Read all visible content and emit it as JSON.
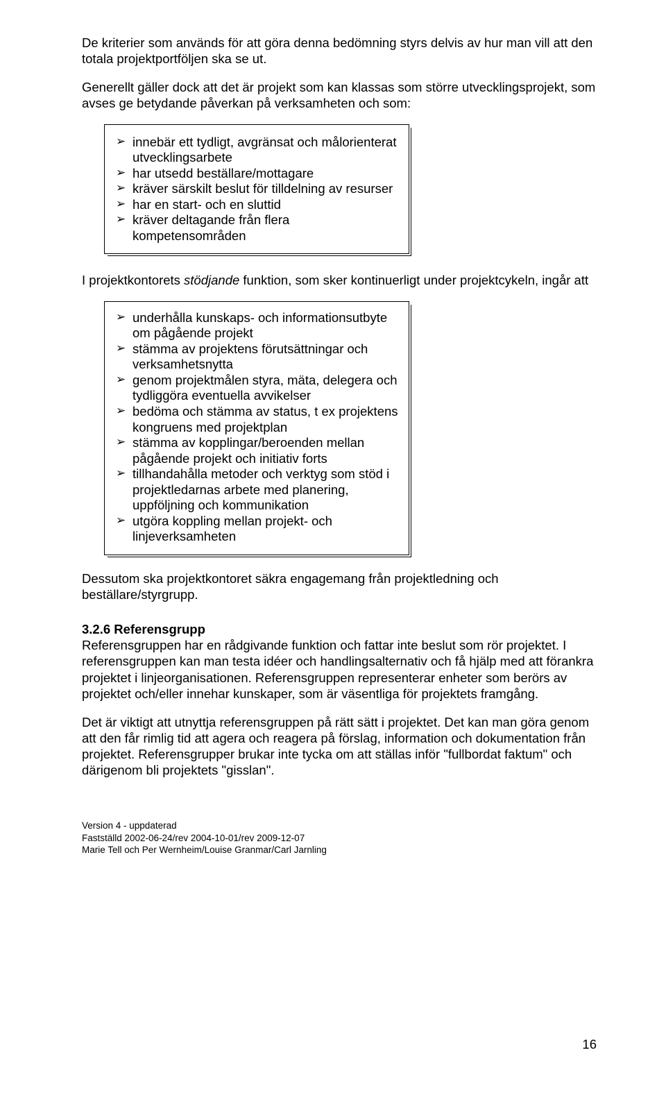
{
  "para1": "De kriterier som används för att göra denna bedömning styrs delvis av hur man vill att den totala projektportföljen ska se ut.",
  "para2": "Generellt gäller dock att det är projekt som kan klassas som större utvecklingsprojekt, som avses ge betydande påverkan på verksamheten och som:",
  "box1": {
    "items": [
      "innebär ett tydligt, avgränsat och målorienterat utvecklingsarbete",
      "har utsedd beställare/mottagare",
      "kräver särskilt beslut för tilldelning av resurser",
      "har en start- och en sluttid",
      "kräver deltagande från flera kompetensområden"
    ]
  },
  "para3_pre": "I projektkontorets ",
  "para3_italic": "stödjande",
  "para3_post": " funktion, som sker kontinuerligt under projektcykeln, ingår att",
  "box2": {
    "items": [
      "underhålla kunskaps- och informationsutbyte om pågående projekt",
      "stämma av projektens förutsättningar och verksamhetsnytta",
      "genom projektmålen styra, mäta, delegera och tydliggöra eventuella avvikelser",
      "bedöma och stämma av status, t ex projektens kongruens med projektplan",
      "stämma av kopplingar/beroenden mellan pågående projekt och initiativ forts",
      "tillhandahålla metoder och verktyg som stöd i projektledarnas arbete med planering, uppföljning och kommunikation",
      "utgöra koppling mellan projekt- och linjeverksamheten"
    ]
  },
  "para4": "Dessutom ska projektkontoret säkra engagemang från projektledning och beställare/styrgrupp.",
  "h3": "3.2.6 Referensgrupp",
  "para5": "Referensgruppen har en rådgivande funktion och fattar inte beslut som rör projektet. I referensgruppen kan man testa idéer och handlingsalternativ och få hjälp med att förankra projektet i linjeorganisationen. Referensgruppen representerar enheter som berörs av projektet och/eller innehar kunskaper, som är väsentliga för projektets framgång.",
  "para6": "Det är viktigt att utnyttja referensgruppen på rätt sätt i projektet. Det kan man göra genom att den får rimlig tid att agera och reagera på förslag, information och dokumentation från projektet. Referensgrupper brukar inte tycka om att ställas inför \"fullbordat faktum\" och därigenom bli projektets \"gisslan\".",
  "footer": {
    "l1": "Version 4 - uppdaterad",
    "l2": "Fastställd 2002-06-24/rev 2004-10-01/rev 2009-12-07",
    "l3": "Marie Tell och Per Wernheim/Louise Granmar/Carl Jarnling"
  },
  "page_number": "16"
}
